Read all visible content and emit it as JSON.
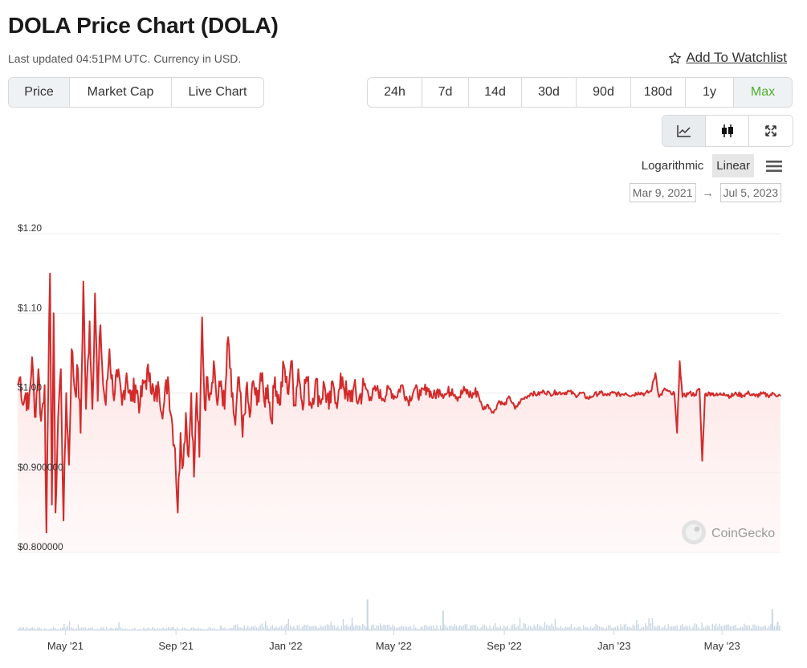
{
  "header": {
    "title": "DOLA Price Chart (DOLA)",
    "updated": "Last updated 04:51PM UTC. Currency in USD.",
    "watchlist_label": "Add To Watchlist"
  },
  "metric_tabs": [
    {
      "label": "Price",
      "active": true
    },
    {
      "label": "Market Cap",
      "active": false
    },
    {
      "label": "Live Chart",
      "active": false
    }
  ],
  "range_tabs": [
    {
      "label": "24h",
      "active": false
    },
    {
      "label": "7d",
      "active": false
    },
    {
      "label": "14d",
      "active": false
    },
    {
      "label": "30d",
      "active": false
    },
    {
      "label": "90d",
      "active": false
    },
    {
      "label": "180d",
      "active": false
    },
    {
      "label": "1y",
      "active": false
    },
    {
      "label": "Max",
      "active": true
    }
  ],
  "view_toggle": {
    "buttons": [
      {
        "icon": "line-chart-icon",
        "active": true
      },
      {
        "icon": "candlestick-icon",
        "active": false
      },
      {
        "icon": "fullscreen-icon",
        "active": false
      }
    ]
  },
  "scale": {
    "options": [
      "Logarithmic",
      "Linear"
    ],
    "selected": "Linear"
  },
  "date_range": {
    "from": "Mar 9, 2021",
    "arrow": "→",
    "to": "Jul 5, 2023"
  },
  "watermark": "CoinGecko",
  "colors": {
    "line": "#d42a2a",
    "fill": "#fde2e2",
    "volume": "#c9d6e3",
    "active_green": "#4caf2b"
  },
  "chart_data": {
    "type": "line",
    "series": [
      {
        "points": [
          [
            "2021-03-09",
            1.01
          ],
          [
            "2021-03-12",
            1.02
          ],
          [
            "2021-03-15",
            0.985
          ],
          [
            "2021-03-18",
            1.0
          ],
          [
            "2021-03-21",
            0.98
          ],
          [
            "2021-03-25",
            1.045
          ],
          [
            "2021-03-28",
            0.97
          ],
          [
            "2021-04-01",
            1.03
          ],
          [
            "2021-04-04",
            0.965
          ],
          [
            "2021-04-08",
            1.01
          ],
          [
            "2021-04-10",
            0.825
          ],
          [
            "2021-04-12",
            1.0
          ],
          [
            "2021-04-14",
            1.15
          ],
          [
            "2021-04-16",
            0.86
          ],
          [
            "2021-04-18",
            1.1
          ],
          [
            "2021-04-20",
            0.85
          ],
          [
            "2021-04-23",
            0.97
          ],
          [
            "2021-04-26",
            1.03
          ],
          [
            "2021-04-29",
            0.84
          ],
          [
            "2021-05-02",
            1.0
          ],
          [
            "2021-05-05",
            0.91
          ],
          [
            "2021-05-08",
            1.055
          ],
          [
            "2021-05-12",
            1.0
          ],
          [
            "2021-05-15",
            1.03
          ],
          [
            "2021-05-18",
            0.95
          ],
          [
            "2021-05-21",
            1.14
          ],
          [
            "2021-05-24",
            0.98
          ],
          [
            "2021-05-28",
            1.09
          ],
          [
            "2021-05-31",
            0.98
          ],
          [
            "2021-06-03",
            1.125
          ],
          [
            "2021-06-06",
            0.99
          ],
          [
            "2021-06-09",
            1.085
          ],
          [
            "2021-06-12",
            1.01
          ],
          [
            "2021-06-15",
            0.985
          ],
          [
            "2021-06-19",
            1.055
          ],
          [
            "2021-06-23",
            1.0
          ],
          [
            "2021-06-28",
            1.02
          ],
          [
            "2021-07-03",
            0.985
          ],
          [
            "2021-07-08",
            1.025
          ],
          [
            "2021-07-13",
            0.99
          ],
          [
            "2021-07-18",
            1.01
          ],
          [
            "2021-07-23",
            0.985
          ],
          [
            "2021-07-28",
            1.015
          ],
          [
            "2021-08-03",
            1.025
          ],
          [
            "2021-08-08",
            0.99
          ],
          [
            "2021-08-13",
            1.005
          ],
          [
            "2021-08-18",
            0.98
          ],
          [
            "2021-08-23",
            1.02
          ],
          [
            "2021-08-27",
            0.97
          ],
          [
            "2021-08-31",
            0.93
          ],
          [
            "2021-09-03",
            0.85
          ],
          [
            "2021-09-06",
            0.95
          ],
          [
            "2021-09-09",
            0.91
          ],
          [
            "2021-09-12",
            0.975
          ],
          [
            "2021-09-15",
            0.92
          ],
          [
            "2021-09-18",
            1.0
          ],
          [
            "2021-09-21",
            0.895
          ],
          [
            "2021-09-24",
            1.0
          ],
          [
            "2021-09-27",
            0.92
          ],
          [
            "2021-09-30",
            1.095
          ],
          [
            "2021-10-03",
            0.98
          ],
          [
            "2021-10-06",
            1.02
          ],
          [
            "2021-10-09",
            1.0
          ],
          [
            "2021-10-13",
            1.04
          ],
          [
            "2021-10-17",
            0.985
          ],
          [
            "2021-10-21",
            1.015
          ],
          [
            "2021-10-25",
            0.98
          ],
          [
            "2021-10-29",
            1.07
          ],
          [
            "2021-11-02",
            0.995
          ],
          [
            "2021-11-06",
            0.96
          ],
          [
            "2021-11-10",
            1.02
          ],
          [
            "2021-11-14",
            0.945
          ],
          [
            "2021-11-18",
            1.005
          ],
          [
            "2021-11-22",
            0.97
          ],
          [
            "2021-11-26",
            1.015
          ],
          [
            "2021-11-30",
            0.985
          ],
          [
            "2021-12-04",
            1.025
          ],
          [
            "2021-12-08",
            0.99
          ],
          [
            "2021-12-12",
            1.01
          ],
          [
            "2021-12-16",
            0.965
          ],
          [
            "2021-12-20",
            1.02
          ],
          [
            "2021-12-25",
            0.985
          ],
          [
            "2021-12-30",
            1.035
          ],
          [
            "2022-01-03",
            1.0
          ],
          [
            "2022-01-07",
            1.04
          ],
          [
            "2022-01-11",
            0.985
          ],
          [
            "2022-01-15",
            1.03
          ],
          [
            "2022-01-19",
            0.99
          ],
          [
            "2022-01-24",
            1.02
          ],
          [
            "2022-01-29",
            0.985
          ],
          [
            "2022-02-03",
            1.015
          ],
          [
            "2022-02-08",
            0.99
          ],
          [
            "2022-02-13",
            1.01
          ],
          [
            "2022-02-18",
            0.98
          ],
          [
            "2022-02-23",
            1.01
          ],
          [
            "2022-02-28",
            0.99
          ],
          [
            "2022-03-05",
            1.02
          ],
          [
            "2022-03-11",
            0.99
          ],
          [
            "2022-03-17",
            1.005
          ],
          [
            "2022-03-23",
            0.99
          ],
          [
            "2022-03-29",
            1.01
          ],
          [
            "2022-04-05",
            0.995
          ],
          [
            "2022-04-12",
            1.005
          ],
          [
            "2022-04-19",
            0.993
          ],
          [
            "2022-04-26",
            1.005
          ],
          [
            "2022-05-03",
            0.995
          ],
          [
            "2022-05-10",
            1.01
          ],
          [
            "2022-05-17",
            0.99
          ],
          [
            "2022-05-24",
            1.005
          ],
          [
            "2022-05-31",
            0.997
          ],
          [
            "2022-06-07",
            1.007
          ],
          [
            "2022-06-14",
            0.995
          ],
          [
            "2022-06-21",
            1.004
          ],
          [
            "2022-06-28",
            0.998
          ],
          [
            "2022-07-05",
            1.005
          ],
          [
            "2022-07-12",
            0.995
          ],
          [
            "2022-07-19",
            1.003
          ],
          [
            "2022-07-26",
            0.997
          ],
          [
            "2022-08-02",
            1.002
          ],
          [
            "2022-08-08",
            0.98
          ],
          [
            "2022-08-14",
            0.985
          ],
          [
            "2022-08-20",
            0.975
          ],
          [
            "2022-08-26",
            0.99
          ],
          [
            "2022-09-01",
            0.985
          ],
          [
            "2022-09-07",
            0.995
          ],
          [
            "2022-09-13",
            0.98
          ],
          [
            "2022-09-19",
            0.99
          ],
          [
            "2022-09-25",
            0.995
          ],
          [
            "2022-10-01",
            1.0
          ],
          [
            "2022-10-08",
            0.998
          ],
          [
            "2022-10-15",
            1.002
          ],
          [
            "2022-10-22",
            0.999
          ],
          [
            "2022-10-29",
            1.001
          ],
          [
            "2022-11-05",
            1.0
          ],
          [
            "2022-11-12",
            1.002
          ],
          [
            "2022-11-19",
            0.997
          ],
          [
            "2022-11-26",
            1.0
          ],
          [
            "2022-12-03",
            0.993
          ],
          [
            "2022-12-10",
            0.998
          ],
          [
            "2022-12-17",
            1.0
          ],
          [
            "2022-12-24",
            0.997
          ],
          [
            "2022-12-31",
            1.0
          ],
          [
            "2023-01-07",
            0.998
          ],
          [
            "2023-01-14",
            1.0
          ],
          [
            "2023-01-21",
            0.997
          ],
          [
            "2023-01-28",
            1.001
          ],
          [
            "2023-02-04",
            0.999
          ],
          [
            "2023-02-11",
            1.002
          ],
          [
            "2023-02-16",
            1.025
          ],
          [
            "2023-02-20",
            0.995
          ],
          [
            "2023-02-27",
            1.005
          ],
          [
            "2023-03-06",
            0.998
          ],
          [
            "2023-03-09",
            1.0
          ],
          [
            "2023-03-12",
            0.95
          ],
          [
            "2023-03-15",
            1.04
          ],
          [
            "2023-03-18",
            0.995
          ],
          [
            "2023-03-25",
            1.0
          ],
          [
            "2023-04-01",
            0.998
          ],
          [
            "2023-04-06",
            1.005
          ],
          [
            "2023-04-09",
            0.915
          ],
          [
            "2023-04-12",
            0.998
          ],
          [
            "2023-04-19",
            1.0
          ],
          [
            "2023-04-26",
            0.997
          ],
          [
            "2023-05-03",
            1.0
          ],
          [
            "2023-05-10",
            0.996
          ],
          [
            "2023-05-17",
            0.999
          ],
          [
            "2023-05-24",
            0.997
          ],
          [
            "2023-05-31",
            1.0
          ],
          [
            "2023-06-07",
            0.996
          ],
          [
            "2023-06-14",
            0.999
          ],
          [
            "2023-06-21",
            0.997
          ],
          [
            "2023-06-28",
            0.999
          ],
          [
            "2023-07-05",
            0.996
          ]
        ]
      }
    ],
    "volume_spikes": [
      [
        "2021-10-20",
        0.08
      ],
      [
        "2022-03-15",
        0.12
      ],
      [
        "2022-04-01",
        0.55
      ],
      [
        "2022-06-24",
        0.35
      ],
      [
        "2023-01-04",
        0.08
      ],
      [
        "2023-06-25",
        0.38
      ],
      [
        "2023-07-01",
        0.15
      ]
    ],
    "y_ticks": [
      1.2,
      1.1,
      1.0,
      0.9,
      0.8
    ],
    "y_tick_labels": [
      "$1.20",
      "$1.10",
      "$1.00",
      "$0.900000",
      "$0.800000"
    ],
    "ylim": [
      0.8,
      1.2
    ],
    "xlim": [
      "2021-03-09",
      "2023-07-05"
    ],
    "x_ticks": [
      "2021-05-01",
      "2021-09-01",
      "2022-01-01",
      "2022-05-01",
      "2022-09-01",
      "2023-01-01",
      "2023-05-01"
    ],
    "x_tick_labels": [
      "May '21",
      "Sep '21",
      "Jan '22",
      "May '22",
      "Sep '22",
      "Jan '23",
      "May '23"
    ],
    "grid": true,
    "legend": "none"
  }
}
